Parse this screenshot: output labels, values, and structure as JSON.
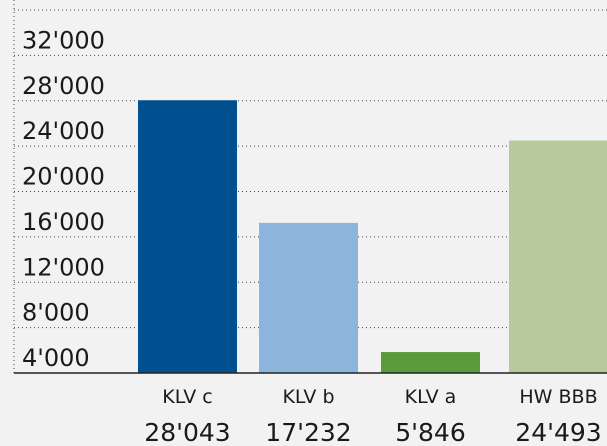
{
  "chart_data": {
    "type": "bar",
    "categories": [
      "KLV c",
      "KLV b",
      "KLV a",
      "HW BBB"
    ],
    "values": [
      28043,
      17232,
      5846,
      24493
    ],
    "value_labels": [
      "28'043",
      "17'232",
      "5'846",
      "24'493"
    ],
    "colors": [
      "#00508f",
      "#8db4dc",
      "#5a9a3a",
      "#b8c99b"
    ],
    "ylim": [
      4000,
      36000
    ],
    "yticks": [
      {
        "value": 4000,
        "label": "4'000"
      },
      {
        "value": 8000,
        "label": "8'000"
      },
      {
        "value": 12000,
        "label": "12'000"
      },
      {
        "value": 16000,
        "label": "16'000"
      },
      {
        "value": 20000,
        "label": "20'000"
      },
      {
        "value": 24000,
        "label": "24'000"
      },
      {
        "value": 28000,
        "label": "28'000"
      },
      {
        "value": 32000,
        "label": "32'000"
      }
    ],
    "grid": true
  }
}
